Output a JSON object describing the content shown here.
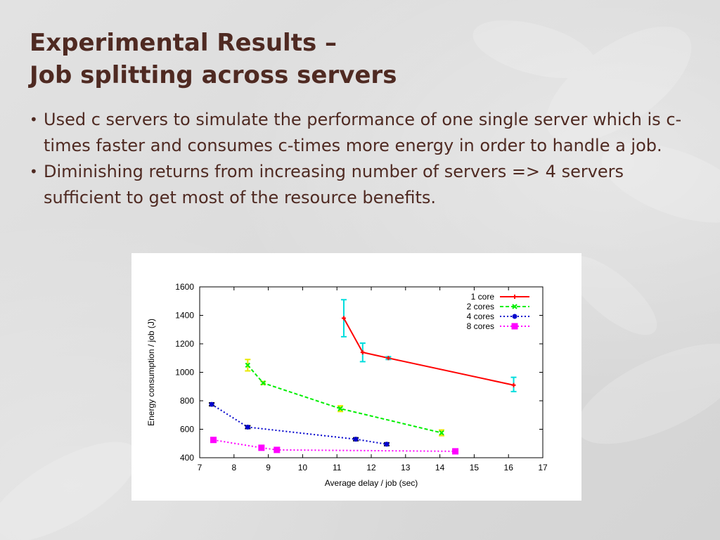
{
  "slide": {
    "title_line1": "Experimental Results –",
    "title_line2": "Job splitting across servers",
    "bullets": [
      "Used c servers to simulate the performance of one single server which is c-times faster and consumes c-times more energy in order to handle a job.",
      "Diminishing returns from increasing number of servers => 4 servers sufficient to get most of the resource benefits."
    ],
    "bullet_glyph": "•",
    "colors": {
      "title": "#4f2a22",
      "text": "#4f2a22",
      "background": "#dcdcdc"
    }
  },
  "chart_data": {
    "type": "line",
    "title": "",
    "xlabel": "Average delay / job (sec)",
    "ylabel": "Energy consumption / job (J)",
    "xlim": [
      7,
      17
    ],
    "ylim": [
      400,
      1600
    ],
    "xticks": [
      7,
      8,
      9,
      10,
      11,
      12,
      13,
      14,
      15,
      16,
      17
    ],
    "yticks": [
      400,
      600,
      800,
      1000,
      1200,
      1400,
      1600
    ],
    "grid": false,
    "legend_position": "top-right",
    "series": [
      {
        "name": "1 core",
        "color": "#ff0000",
        "error_color": "#00dddd",
        "dash": "solid",
        "marker": "plus",
        "points": [
          [
            11.2,
            1380
          ],
          [
            11.75,
            1140
          ],
          [
            12.5,
            1100
          ],
          [
            16.15,
            910
          ]
        ],
        "errors": [
          [
            1250,
            1510
          ],
          [
            1075,
            1205
          ],
          [
            1090,
            1110
          ],
          [
            865,
            965
          ]
        ]
      },
      {
        "name": "2 cores",
        "color": "#00ee00",
        "error_color": "#e8e800",
        "dash": "dashed",
        "marker": "x",
        "points": [
          [
            8.4,
            1050
          ],
          [
            8.85,
            925
          ],
          [
            11.1,
            745
          ],
          [
            14.05,
            575
          ]
        ],
        "errors": [
          [
            1010,
            1090
          ],
          [
            915,
            935
          ],
          [
            725,
            765
          ],
          [
            555,
            595
          ]
        ]
      },
      {
        "name": "4 cores",
        "color": "#0000cc",
        "error_color": "#000000",
        "dash": "dotted",
        "marker": "filled-circle",
        "points": [
          [
            7.35,
            775
          ],
          [
            8.4,
            615
          ],
          [
            11.55,
            530
          ],
          [
            12.45,
            495
          ]
        ],
        "errors": [
          [
            765,
            785
          ],
          [
            605,
            625
          ],
          [
            520,
            540
          ],
          [
            485,
            505
          ]
        ]
      },
      {
        "name": "8 cores",
        "color": "#ff00ff",
        "error_color": "#ff3333",
        "dash": "dotted",
        "marker": "filled-square",
        "points": [
          [
            7.4,
            525
          ],
          [
            8.8,
            470
          ],
          [
            9.25,
            455
          ],
          [
            14.45,
            445
          ]
        ],
        "errors": [
          [
            515,
            535
          ],
          [
            460,
            480
          ],
          [
            440,
            470
          ],
          [
            435,
            455
          ]
        ]
      }
    ]
  }
}
